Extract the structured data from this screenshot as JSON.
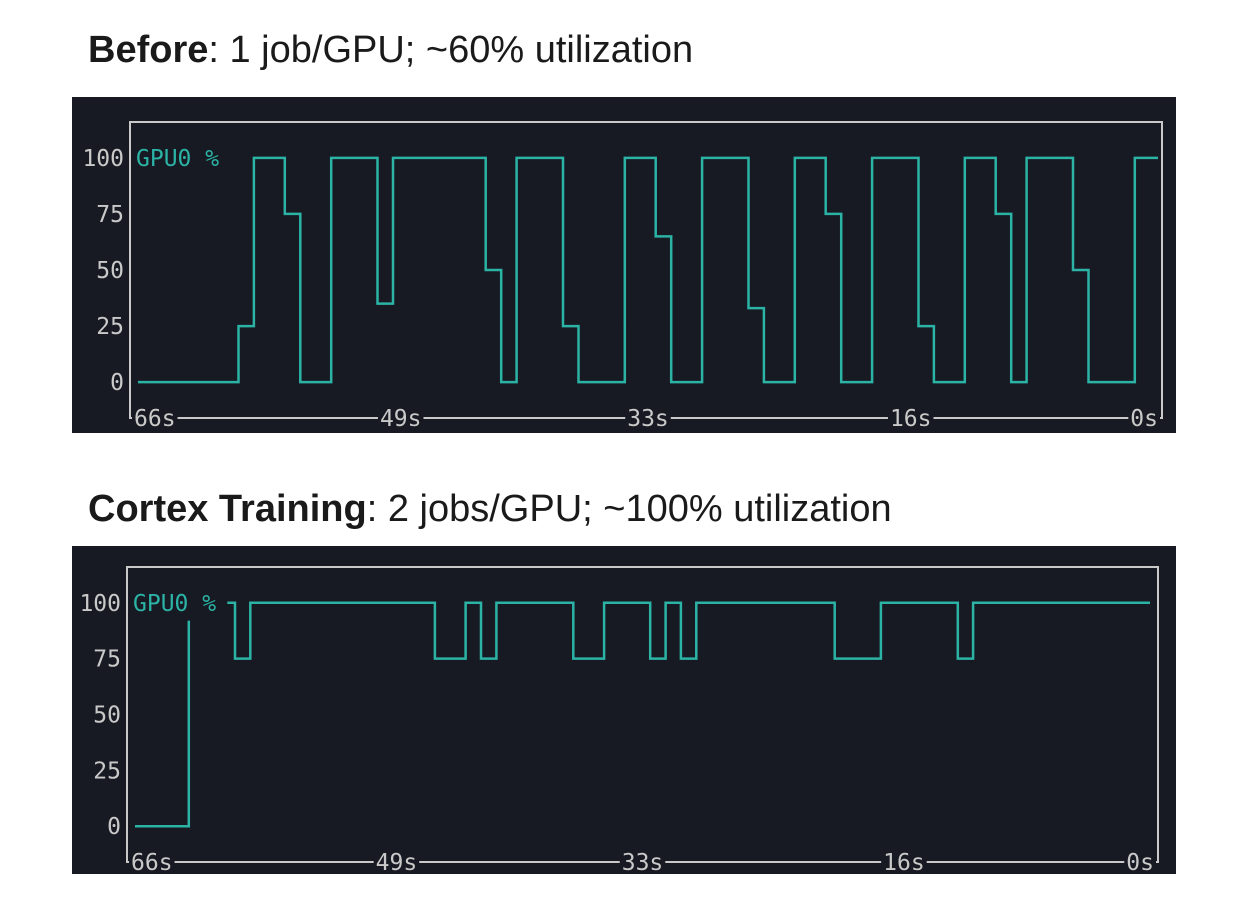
{
  "chart_data": [
    {
      "type": "line",
      "title": "Before",
      "subtitle": ": 1 job/GPU; ~60% utilization",
      "x": [
        66,
        59.5,
        59.5,
        58.5,
        58.5,
        56.5,
        56.5,
        55.5,
        55.5,
        53.5,
        53.5,
        50.5,
        50.5,
        49.5,
        49.5,
        43.5,
        43.5,
        42.5,
        42.5,
        41.5,
        41.5,
        38.5,
        38.5,
        37.5,
        37.5,
        34.5,
        34.5,
        32.5,
        32.5,
        31.5,
        31.5,
        29.5,
        29.5,
        26.5,
        26.5,
        25.5,
        25.5,
        23.5,
        23.5,
        21.5,
        21.5,
        20.5,
        20.5,
        18.5,
        18.5,
        15.5,
        15.5,
        14.5,
        14.5,
        12.5,
        12.5,
        10.5,
        10.5,
        9.5,
        9.5,
        8.5,
        8.5,
        5.5,
        5.5,
        4.5,
        4.5,
        1.5,
        1.5,
        0
      ],
      "series": [
        {
          "name": "GPU0 %",
          "color": "#2bb3a6",
          "values": [
            0,
            0,
            25,
            25,
            100,
            100,
            75,
            75,
            0,
            0,
            100,
            100,
            35,
            35,
            100,
            100,
            50,
            50,
            0,
            0,
            100,
            100,
            25,
            25,
            0,
            0,
            100,
            100,
            65,
            65,
            0,
            0,
            100,
            100,
            33,
            33,
            0,
            0,
            100,
            100,
            75,
            75,
            0,
            0,
            100,
            100,
            25,
            25,
            0,
            0,
            100,
            100,
            75,
            75,
            0,
            0,
            100,
            100,
            50,
            50,
            0,
            0,
            100,
            100
          ]
        }
      ],
      "xlim": [
        66,
        0
      ],
      "xticks": [
        {
          "value": 66,
          "label": "66s"
        },
        {
          "value": 49,
          "label": "49s"
        },
        {
          "value": 33,
          "label": "33s"
        },
        {
          "value": 16,
          "label": "16s"
        },
        {
          "value": 0,
          "label": "0s"
        }
      ],
      "ylim": [
        -16,
        116
      ],
      "yticks": [
        0,
        25,
        50,
        75,
        100
      ]
    },
    {
      "type": "line",
      "title": "Cortex Training",
      "subtitle": ": 2 jobs/GPU; ~100% utilization",
      "x": [
        66,
        62.5,
        62.5,
        61,
        60,
        59.5,
        59.5,
        58.5,
        58.5,
        46.5,
        46.5,
        44.5,
        44.5,
        43.5,
        43.5,
        42.5,
        42.5,
        37.5,
        37.5,
        35.5,
        35.5,
        32.5,
        32.5,
        31.5,
        31.5,
        30.5,
        30.5,
        29.5,
        29.5,
        20.5,
        20.5,
        17.5,
        17.5,
        12.5,
        12.5,
        11.5,
        11.5,
        0
      ],
      "series": [
        {
          "name": "GPU0 %",
          "color": "#2bb3a6",
          "values": [
            0,
            0,
            92,
            null,
            100,
            100,
            75,
            75,
            100,
            100,
            75,
            75,
            100,
            100,
            75,
            75,
            100,
            100,
            75,
            75,
            100,
            100,
            75,
            75,
            100,
            100,
            75,
            75,
            100,
            100,
            75,
            75,
            100,
            100,
            75,
            75,
            100,
            100
          ]
        }
      ],
      "xlim": [
        66,
        0
      ],
      "xticks": [
        {
          "value": 66,
          "label": "66s"
        },
        {
          "value": 49,
          "label": "49s"
        },
        {
          "value": 33,
          "label": "33s"
        },
        {
          "value": 16,
          "label": "16s"
        },
        {
          "value": 0,
          "label": "0s"
        }
      ],
      "ylim": [
        -16,
        116
      ],
      "yticks": [
        0,
        25,
        50,
        75,
        100
      ]
    }
  ]
}
